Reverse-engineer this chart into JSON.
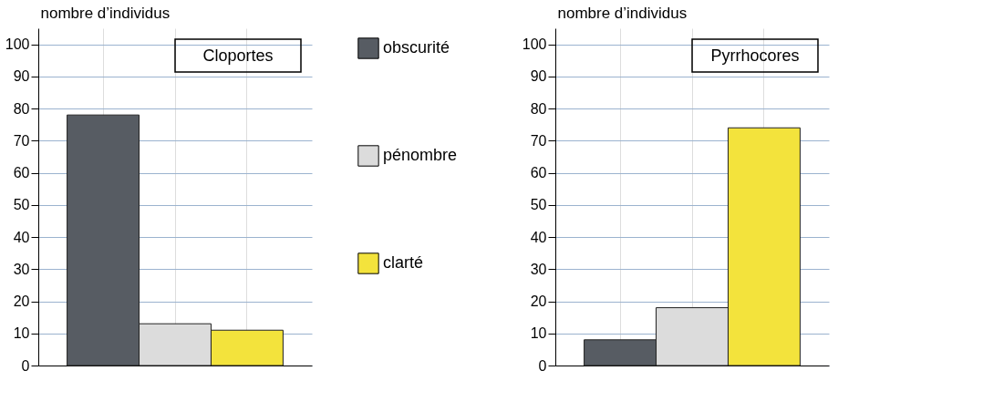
{
  "chart_data": [
    {
      "type": "bar",
      "title": "Cloportes",
      "ylabel": "nombre d’individus",
      "categories": [
        null
      ],
      "series": [
        {
          "name": "obscurité",
          "color": "#575c63",
          "values": [
            78
          ]
        },
        {
          "name": "pénombre",
          "color": "#dcdcdc",
          "values": [
            13
          ]
        },
        {
          "name": "clarté",
          "color": "#f3e33c",
          "values": [
            11
          ]
        }
      ],
      "ylim": [
        0,
        105
      ],
      "yticks": [
        0,
        10,
        20,
        30,
        40,
        50,
        60,
        70,
        80,
        90,
        100
      ],
      "grid": true,
      "legend": "right",
      "tick_labels": "y"
    },
    {
      "type": "bar",
      "title": "Pyrrhocores",
      "ylabel": "nombre d’individus",
      "categories": [
        null
      ],
      "series": [
        {
          "color": "#575c63",
          "values": [
            8
          ]
        },
        {
          "color": "#dcdcdc",
          "values": [
            18
          ]
        },
        {
          "color": "#f3e33c",
          "values": [
            74
          ]
        }
      ],
      "ylim": [
        0,
        105
      ],
      "yticks": [
        0,
        10,
        20,
        30,
        40,
        50,
        60,
        70,
        80,
        90,
        100
      ],
      "grid": true,
      "tick_labels": "y"
    }
  ]
}
